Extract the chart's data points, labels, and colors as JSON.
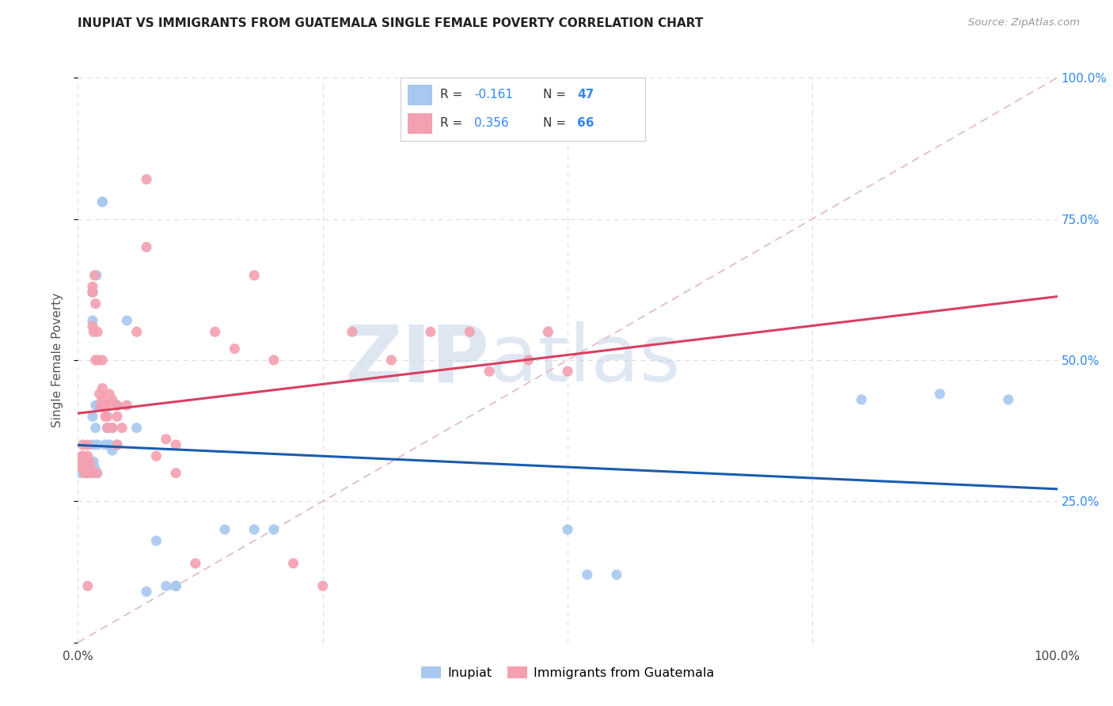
{
  "title": "INUPIAT VS IMMIGRANTS FROM GUATEMALA SINGLE FEMALE POVERTY CORRELATION CHART",
  "source": "Source: ZipAtlas.com",
  "ylabel": "Single Female Poverty",
  "xlim": [
    0,
    1
  ],
  "ylim": [
    0,
    1
  ],
  "inupiat_color": "#a8c8f0",
  "guatemala_color": "#f4a0b0",
  "inupiat_line_color": "#1a5cb0",
  "guatemala_line_color": "#d94060",
  "diag_line_color": "#e0b8c8",
  "R_inupiat": -0.161,
  "N_inupiat": 47,
  "R_guatemala": 0.356,
  "N_guatemala": 66,
  "watermark_zip": "ZIP",
  "watermark_atlas": "atlas",
  "inupiat_x": [
    0.003,
    0.005,
    0.007,
    0.008,
    0.009,
    0.01,
    0.01,
    0.012,
    0.013,
    0.015,
    0.015,
    0.015,
    0.015,
    0.016,
    0.017,
    0.018,
    0.018,
    0.019,
    0.02,
    0.02,
    0.02,
    0.025,
    0.025,
    0.028,
    0.03,
    0.032,
    0.035,
    0.035,
    0.04,
    0.04,
    0.05,
    0.06,
    0.07,
    0.08,
    0.09,
    0.1,
    0.1,
    0.1,
    0.15,
    0.18,
    0.2,
    0.5,
    0.52,
    0.55,
    0.8,
    0.88,
    0.95
  ],
  "inupiat_y": [
    0.3,
    0.32,
    0.32,
    0.31,
    0.3,
    0.3,
    0.32,
    0.31,
    0.3,
    0.62,
    0.57,
    0.4,
    0.35,
    0.32,
    0.31,
    0.42,
    0.38,
    0.65,
    0.42,
    0.35,
    0.3,
    0.78,
    0.78,
    0.35,
    0.38,
    0.35,
    0.38,
    0.34,
    0.42,
    0.35,
    0.57,
    0.38,
    0.09,
    0.18,
    0.1,
    0.1,
    0.1,
    0.1,
    0.2,
    0.2,
    0.2,
    0.2,
    0.12,
    0.12,
    0.43,
    0.44,
    0.43
  ],
  "guatemala_x": [
    0.002,
    0.003,
    0.004,
    0.005,
    0.005,
    0.005,
    0.006,
    0.007,
    0.008,
    0.009,
    0.01,
    0.01,
    0.01,
    0.012,
    0.013,
    0.014,
    0.015,
    0.015,
    0.015,
    0.016,
    0.017,
    0.018,
    0.018,
    0.019,
    0.02,
    0.02,
    0.022,
    0.023,
    0.025,
    0.025,
    0.025,
    0.027,
    0.028,
    0.03,
    0.03,
    0.03,
    0.032,
    0.035,
    0.035,
    0.04,
    0.04,
    0.04,
    0.045,
    0.05,
    0.06,
    0.07,
    0.07,
    0.08,
    0.09,
    0.1,
    0.1,
    0.12,
    0.14,
    0.16,
    0.18,
    0.2,
    0.22,
    0.25,
    0.28,
    0.32,
    0.36,
    0.4,
    0.42,
    0.46,
    0.48,
    0.5
  ],
  "guatemala_y": [
    0.32,
    0.31,
    0.33,
    0.35,
    0.33,
    0.31,
    0.32,
    0.3,
    0.31,
    0.3,
    0.35,
    0.33,
    0.1,
    0.32,
    0.31,
    0.3,
    0.63,
    0.62,
    0.56,
    0.55,
    0.65,
    0.6,
    0.5,
    0.3,
    0.55,
    0.5,
    0.44,
    0.42,
    0.5,
    0.45,
    0.43,
    0.42,
    0.4,
    0.42,
    0.4,
    0.38,
    0.44,
    0.43,
    0.38,
    0.42,
    0.4,
    0.35,
    0.38,
    0.42,
    0.55,
    0.82,
    0.7,
    0.33,
    0.36,
    0.35,
    0.3,
    0.14,
    0.55,
    0.52,
    0.65,
    0.5,
    0.14,
    0.1,
    0.55,
    0.5,
    0.55,
    0.55,
    0.48,
    0.5,
    0.55,
    0.48
  ]
}
